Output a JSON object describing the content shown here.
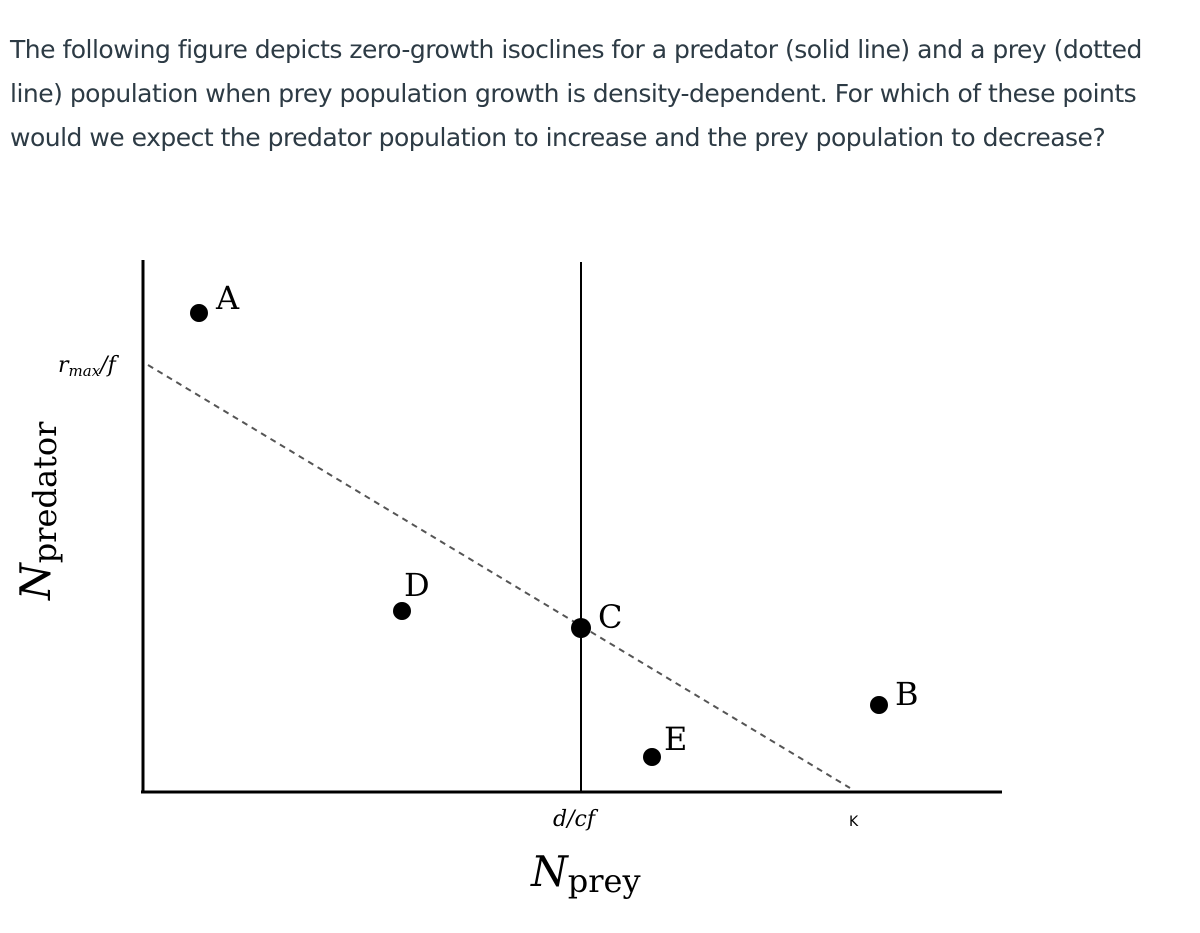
{
  "question": {
    "text": "The following figure depicts zero-growth isoclines for a predator (solid line) and a prey (dotted line) population when prey population growth is density-dependent. For which of these points would we expect the predator population to increase and the prey population to decrease?"
  },
  "figure": {
    "y_axis": {
      "label_main": "N",
      "label_sub": "predator",
      "tick_label_main": "r",
      "tick_label_sub": "max",
      "tick_label_rest": "/f"
    },
    "x_axis": {
      "label_main": "N",
      "label_sub": "prey",
      "tick_dcf": "d/cf",
      "tick_k": "K"
    },
    "points": [
      {
        "label": "A"
      },
      {
        "label": "B"
      },
      {
        "label": "C"
      },
      {
        "label": "D"
      },
      {
        "label": "E"
      }
    ],
    "colors": {
      "axis": "#000000",
      "point": "#000000",
      "prey_isocline": "#555555",
      "text": "#2d3b45"
    }
  }
}
